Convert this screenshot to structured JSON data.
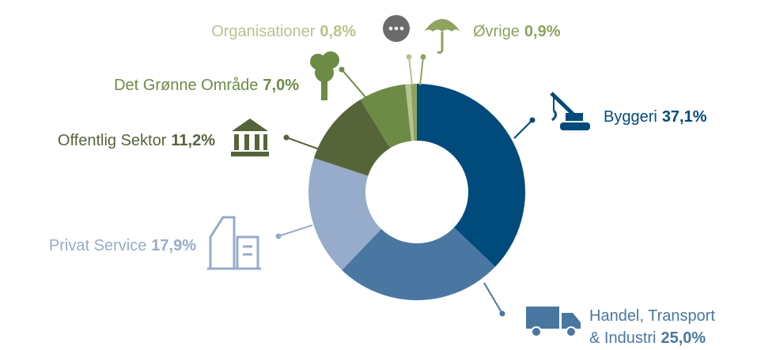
{
  "chart_data": {
    "type": "donut",
    "categories": [
      "Byggeri",
      "Handel, Transport\n& Industri",
      "Privat Service",
      "Offentlig Sektor",
      "Det Grønne Område",
      "Organisationer",
      "Øvrige"
    ],
    "values": [
      37.1,
      25.0,
      17.9,
      11.2,
      7.0,
      0.8,
      0.9
    ],
    "value_labels": [
      "37,1%",
      "25,0%",
      "17,9%",
      "11,2%",
      "7,0%",
      "0,8%",
      "0,9%"
    ],
    "colors": [
      "#004a7c",
      "#4a77a2",
      "#97abca",
      "#56643a",
      "#6e8b46",
      "#b6c48e",
      "#8ea35f"
    ]
  }
}
